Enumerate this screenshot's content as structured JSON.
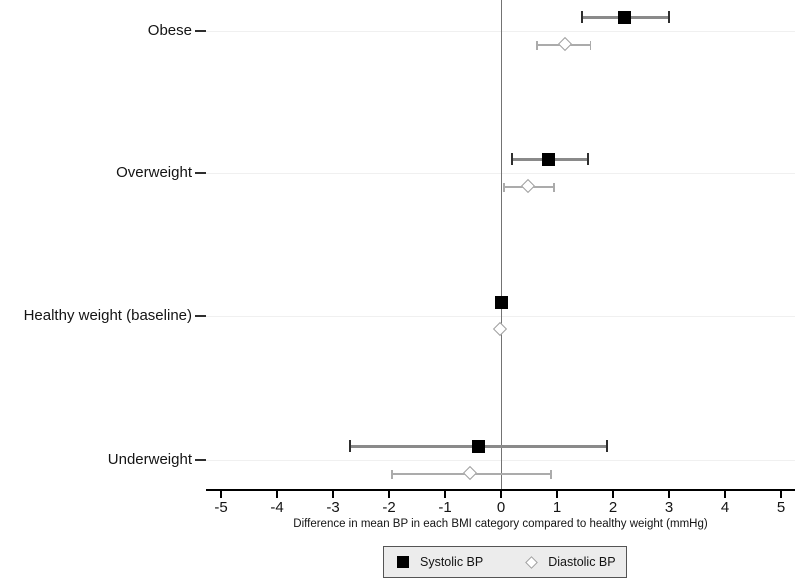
{
  "figure": {
    "background": "#ffffff"
  },
  "chart_data": {
    "type": "forest",
    "title": "",
    "xlabel": "Difference in mean BP in each BMI category compared to healthy weight (mmHg)",
    "ylabel": "",
    "categories": [
      "Obese",
      "Overweight",
      "Healthy weight (baseline)",
      "Underweight"
    ],
    "x_ticks": [
      -5,
      -4,
      -3,
      -2,
      -1,
      0,
      1,
      2,
      3,
      4,
      5
    ],
    "xlim": [
      -5.3,
      5.3
    ],
    "reference_line_x": 0,
    "grid": "faint horizontal line at each category",
    "legend_position": "bottom-center",
    "series": [
      {
        "name": "Systolic BP",
        "marker": "filled-black-square",
        "points": [
          {
            "category": "Obese",
            "estimate": 2.2,
            "ci": [
              1.45,
              3.0
            ]
          },
          {
            "category": "Overweight",
            "estimate": 0.85,
            "ci": [
              0.2,
              1.55
            ]
          },
          {
            "category": "Healthy weight (baseline)",
            "estimate": 0,
            "ci": null
          },
          {
            "category": "Underweight",
            "estimate": -0.4,
            "ci": [
              -2.7,
              1.9
            ]
          }
        ]
      },
      {
        "name": "Diastolic BP",
        "marker": "open-gray-diamond",
        "points": [
          {
            "category": "Obese",
            "estimate": 1.15,
            "ci": [
              0.65,
              1.6
            ]
          },
          {
            "category": "Overweight",
            "estimate": 0.5,
            "ci": [
              0.05,
              0.95
            ]
          },
          {
            "category": "Healthy weight (baseline)",
            "estimate": 0,
            "ci": null
          },
          {
            "category": "Underweight",
            "estimate": -0.55,
            "ci": [
              -1.95,
              0.9
            ]
          }
        ]
      }
    ]
  },
  "colors": {
    "background": "#ffffff",
    "systolic_marker": "#000000",
    "systolic_ci_line": "#8a8a8a",
    "systolic_ci_cap": "#2e2e2e",
    "diastolic_marker_stroke": "#9f9f9f",
    "diastolic_ci_line": "#ababab",
    "grid_line": "#f0f0f0",
    "reference_line": "#737373",
    "axis_line": "#000000",
    "text": "#141414",
    "legend_background": "#ececec",
    "legend_border": "#545454"
  }
}
